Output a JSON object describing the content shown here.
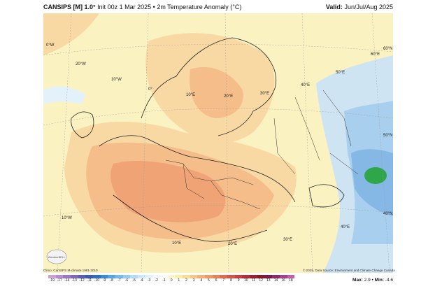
{
  "header": {
    "model": "CANSIPS [M] 1.0°",
    "init_text": "Init 00z 1 Mar 2025 • 2m Temperature Anomaly (°C)",
    "valid_label": "Valid:",
    "valid_value": "Jun/Jul/Aug 2025"
  },
  "map": {
    "grid_labels": [
      "0°W",
      "20°W",
      "10°W",
      "0°",
      "10°E",
      "20°E",
      "30°E",
      "40°E",
      "50°E",
      "60°E",
      "60°N",
      "50°N",
      "40°N",
      "10°W",
      "40°E",
      "30°E",
      "20°E",
      "10°E"
    ],
    "colors": {
      "neutral": "#fbf2c2",
      "warm1": "#f9d9a3",
      "warm2": "#f5bd8a",
      "warm3": "#f0a476",
      "cool1": "#cfe4f3",
      "cool2": "#a9cfee",
      "cool3": "#86b8e6",
      "cold": "#2fa64a"
    }
  },
  "footer": {
    "climo": "Climo: CanSIPS M-climate 1981-2010",
    "credit": "© 2025, Data Source: Environment and Climate Change Canada",
    "logo_text": "WeatherBELL"
  },
  "scale": {
    "labels": [
      "-19",
      "-17",
      "-14",
      "-13",
      "-12",
      "-11",
      "-10",
      "-9",
      "-8",
      "-7",
      "-6",
      "-5",
      "-4",
      "-3",
      "-2",
      "-1",
      "0",
      "1",
      "2",
      "3",
      "4",
      "5",
      "6",
      "7",
      "8",
      "9",
      "10",
      "11",
      "12",
      "13",
      "14",
      "16",
      "18"
    ],
    "colors": [
      "#c9a3d6",
      "#b58bc9",
      "#9d76bd",
      "#7d6ab8",
      "#5a5fb3",
      "#3a59b0",
      "#2d6fc2",
      "#3d8bd3",
      "#58a4de",
      "#78bae6",
      "#98cbee",
      "#b6daf3",
      "#cfe7f7",
      "#e3f1fa",
      "#f1f8fb",
      "#fbfbf0",
      "#fbf6cf",
      "#fbeea8",
      "#f9dd97",
      "#f6c886",
      "#f2b277",
      "#ee9a68",
      "#e8825a",
      "#e06a4e",
      "#d45446",
      "#c63f3f",
      "#b22d38",
      "#9a2230",
      "#861a29",
      "#7a1a46",
      "#8c2c6b",
      "#a4448c",
      "#b963ab"
    ]
  },
  "stats": {
    "max_label": "Max:",
    "max_value": "2.9",
    "sep": "•",
    "min_label": "Min:",
    "min_value": "-4.6"
  }
}
